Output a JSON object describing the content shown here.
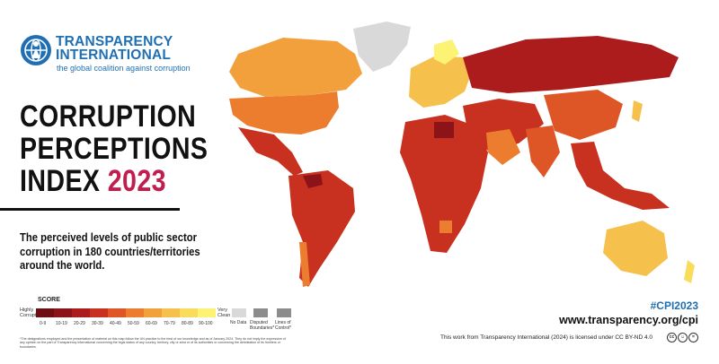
{
  "org": {
    "name_line1": "TRANSPARENCY",
    "name_line2": "INTERNATIONAL",
    "tagline": "the global coalition against corruption",
    "brand_color": "#1f6fb4"
  },
  "title": {
    "line1": "CORRUPTION",
    "line2": "PERCEPTIONS",
    "line3_prefix": "INDEX ",
    "year": "2023",
    "year_color": "#c21d4f"
  },
  "subtitle": {
    "line1": "The perceived levels of public sector",
    "line2": "corruption in 180 countries/territories",
    "line3": "around the world."
  },
  "legend": {
    "title": "SCORE",
    "low_label": "Highly Corrupt",
    "high_label": "Very Clean",
    "bins": [
      {
        "label": "0-9",
        "color": "#6e0f14"
      },
      {
        "label": "10-19",
        "color": "#8c1418"
      },
      {
        "label": "20-29",
        "color": "#ad1c1c"
      },
      {
        "label": "30-39",
        "color": "#c83020"
      },
      {
        "label": "40-49",
        "color": "#df5626"
      },
      {
        "label": "50-59",
        "color": "#ec7c2e"
      },
      {
        "label": "60-69",
        "color": "#f2a03c"
      },
      {
        "label": "70-79",
        "color": "#f6c04d"
      },
      {
        "label": "80-89",
        "color": "#f9dc5c"
      },
      {
        "label": "90-100",
        "color": "#fcf274"
      }
    ],
    "no_data": {
      "label": "No Data",
      "color": "#d9d9d9"
    },
    "disputed": {
      "label": "Disputed Boundaries*",
      "color": "#8c8c8c"
    },
    "loc": {
      "label": "Lines of Control*",
      "color": "#8c8c8c"
    }
  },
  "disclaimer": "*The designations employed and the presentation of material on this map follow the UN practice to the best of our knowledge and as of January 2024. They do not imply the expression of any opinion on the part of Transparency International concerning the legal status of any country, territory, city or area or of its authorities or concerning the delimitation of its frontiers or boundaries.",
  "hashtag": "#CPI2023",
  "url": "www.transparency.org/cpi",
  "license": "This work from Transparency International (2024) is licensed under CC BY-ND 4.0",
  "cc_icons": [
    "cc-icon",
    "by-icon",
    "nd-icon"
  ]
}
